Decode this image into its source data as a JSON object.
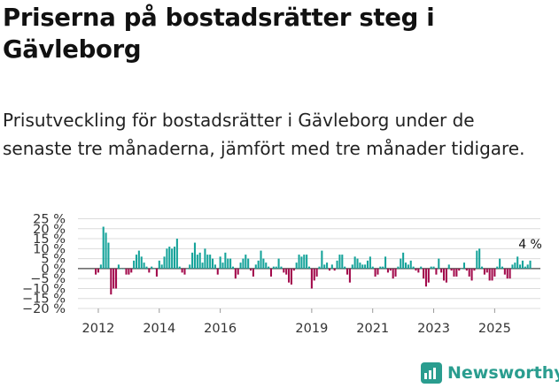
{
  "title": "Priserna på bostadsrätter steg i Gävleborg",
  "subtitle": "Prisutveckling för bostadsrätter i Gävleborg under de senaste tre månaderna, jämfört med tre månader tidigare.",
  "brand": {
    "name": "Newsworthy",
    "color": "#2a9d8f"
  },
  "chart_data": {
    "type": "bar",
    "title": "",
    "xlabel": "",
    "ylabel": "",
    "ylim": [
      -20,
      25
    ],
    "yticks": [
      -20,
      -15,
      -10,
      -5,
      0,
      5,
      10,
      15,
      20,
      25
    ],
    "ytick_labels": [
      "−20 %",
      "−15 %",
      "−10 %",
      "−5 %",
      "0 %",
      "5 %",
      "10 %",
      "15 %",
      "20 %",
      "25 %"
    ],
    "xticks": [
      {
        "year": 2012,
        "label": "2012"
      },
      {
        "year": 2014,
        "label": "2014"
      },
      {
        "year": 2016,
        "label": "2016"
      },
      {
        "year": 2019,
        "label": "2019"
      },
      {
        "year": 2021,
        "label": "2021"
      },
      {
        "year": 2023,
        "label": "2023"
      },
      {
        "year": 2025,
        "label": "2025"
      }
    ],
    "x_start": 2011.917,
    "x_step_months": 1,
    "colors": {
      "positive": "#15a39a",
      "negative": "#a20a4b"
    },
    "annotation": {
      "text": "4 %",
      "value": 4
    },
    "values": [
      -3,
      -2,
      2,
      21,
      18,
      13,
      -13,
      -10,
      -10,
      2,
      0,
      0,
      -3,
      -3,
      -2,
      4,
      7,
      9,
      6,
      3,
      1,
      -2,
      1,
      0,
      -4,
      4,
      2,
      6,
      10,
      11,
      10,
      11,
      15,
      1,
      -2,
      -3,
      0,
      2,
      8,
      13,
      7,
      8,
      3,
      10,
      7,
      7,
      5,
      2,
      -3,
      6,
      3,
      8,
      5,
      5,
      1,
      -5,
      -3,
      3,
      5,
      7,
      5,
      -1,
      -4,
      2,
      4,
      9,
      5,
      3,
      1,
      -4,
      1,
      1,
      5,
      1,
      -2,
      -3,
      -7,
      -8,
      -1,
      3,
      7,
      6,
      7,
      7,
      1,
      -10,
      -6,
      -4,
      1,
      9,
      2,
      3,
      -1,
      2,
      -1,
      4,
      7,
      7,
      1,
      -3,
      -7,
      2,
      6,
      5,
      3,
      2,
      2,
      4,
      6,
      1,
      -4,
      -3,
      1,
      1,
      6,
      -2,
      -1,
      -5,
      -4,
      1,
      5,
      8,
      3,
      2,
      4,
      1,
      -1,
      -2,
      1,
      -5,
      -9,
      -7,
      1,
      1,
      -3,
      5,
      -2,
      -6,
      -7,
      2,
      -1,
      -4,
      -4,
      -1,
      0,
      3,
      -1,
      -4,
      -6,
      -1,
      9,
      10,
      1,
      -3,
      -2,
      -6,
      -6,
      -4,
      1,
      5,
      1,
      -3,
      -5,
      -5,
      2,
      3,
      6,
      2,
      4,
      1,
      2,
      4
    ]
  }
}
